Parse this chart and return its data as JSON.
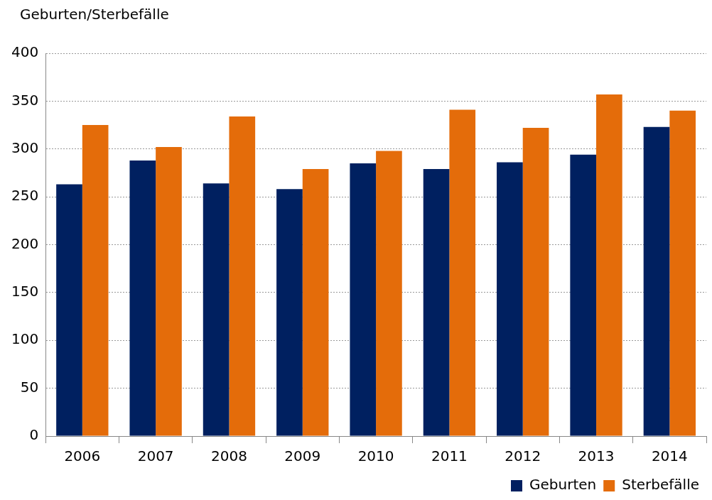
{
  "chart_data": {
    "type": "bar",
    "ylabel": "Geburten/Sterbefälle",
    "categories": [
      "2006",
      "2007",
      "2008",
      "2009",
      "2010",
      "2011",
      "2012",
      "2013",
      "2014"
    ],
    "series": [
      {
        "name": "Geburten",
        "color": "#002060",
        "values": [
          263,
          288,
          264,
          258,
          285,
          279,
          286,
          294,
          323
        ]
      },
      {
        "name": "Sterbefälle",
        "color": "#e46c0a",
        "values": [
          325,
          302,
          334,
          279,
          298,
          341,
          322,
          357,
          340
        ]
      }
    ],
    "ylim": [
      0,
      400
    ],
    "yticks": [
      0,
      50,
      100,
      150,
      200,
      250,
      300,
      350,
      400
    ],
    "grid": "y",
    "legend": "bottom right"
  }
}
